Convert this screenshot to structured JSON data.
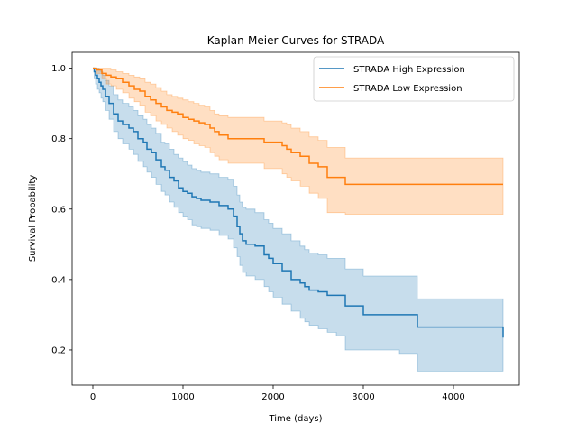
{
  "chart_data": {
    "type": "line",
    "title": "Kaplan-Meier Curves for STRADA",
    "xlabel": "Time (days)",
    "ylabel": "Survival Probability",
    "xlim": [
      -230,
      4730
    ],
    "ylim": [
      0.1,
      1.045
    ],
    "xticks": [
      0,
      1000,
      2000,
      3000,
      4000
    ],
    "yticks": [
      0.2,
      0.4,
      0.6,
      0.8,
      1.0
    ],
    "xtick_labels": [
      "0",
      "1000",
      "2000",
      "3000",
      "4000"
    ],
    "ytick_labels": [
      "0.2",
      "0.4",
      "0.6",
      "0.8",
      "1.0"
    ],
    "grid": false,
    "legend_position": "top-right",
    "series": [
      {
        "name": "STRADA High Expression",
        "color": "#1f77b4",
        "x": [
          0,
          15,
          30,
          50,
          70,
          90,
          110,
          140,
          180,
          230,
          280,
          330,
          400,
          450,
          500,
          560,
          600,
          650,
          700,
          760,
          800,
          850,
          900,
          950,
          1000,
          1050,
          1100,
          1150,
          1200,
          1300,
          1400,
          1500,
          1560,
          1600,
          1630,
          1660,
          1700,
          1800,
          1900,
          1950,
          2000,
          2100,
          2200,
          2300,
          2350,
          2400,
          2500,
          2600,
          2700,
          2800,
          3000,
          3200,
          3400,
          3550,
          3600,
          4550
        ],
        "y": [
          1.0,
          0.99,
          0.98,
          0.97,
          0.96,
          0.95,
          0.94,
          0.92,
          0.9,
          0.87,
          0.85,
          0.84,
          0.83,
          0.82,
          0.8,
          0.79,
          0.77,
          0.76,
          0.74,
          0.72,
          0.71,
          0.69,
          0.68,
          0.66,
          0.65,
          0.645,
          0.635,
          0.63,
          0.625,
          0.62,
          0.61,
          0.6,
          0.58,
          0.55,
          0.53,
          0.51,
          0.5,
          0.495,
          0.47,
          0.46,
          0.445,
          0.425,
          0.4,
          0.39,
          0.38,
          0.37,
          0.365,
          0.355,
          0.355,
          0.325,
          0.3,
          0.3,
          0.3,
          0.3,
          0.265,
          0.235
        ],
        "ci_upper": [
          1.0,
          1.0,
          1.0,
          1.0,
          0.995,
          0.99,
          0.98,
          0.965,
          0.95,
          0.925,
          0.91,
          0.9,
          0.89,
          0.88,
          0.865,
          0.855,
          0.84,
          0.83,
          0.815,
          0.79,
          0.785,
          0.77,
          0.755,
          0.745,
          0.735,
          0.725,
          0.715,
          0.71,
          0.705,
          0.7,
          0.69,
          0.685,
          0.665,
          0.64,
          0.62,
          0.605,
          0.6,
          0.59,
          0.57,
          0.56,
          0.545,
          0.53,
          0.51,
          0.495,
          0.485,
          0.475,
          0.47,
          0.46,
          0.46,
          0.43,
          0.41,
          0.41,
          0.41,
          0.41,
          0.345,
          0.345
        ],
        "ci_lower": [
          1.0,
          0.97,
          0.955,
          0.94,
          0.93,
          0.915,
          0.905,
          0.88,
          0.855,
          0.82,
          0.8,
          0.785,
          0.77,
          0.755,
          0.735,
          0.72,
          0.705,
          0.69,
          0.67,
          0.65,
          0.64,
          0.62,
          0.605,
          0.59,
          0.58,
          0.57,
          0.555,
          0.55,
          0.545,
          0.54,
          0.525,
          0.515,
          0.49,
          0.465,
          0.44,
          0.42,
          0.41,
          0.4,
          0.38,
          0.365,
          0.35,
          0.33,
          0.31,
          0.29,
          0.28,
          0.27,
          0.26,
          0.25,
          0.24,
          0.2,
          0.2,
          0.2,
          0.19,
          0.19,
          0.14,
          0.14
        ]
      },
      {
        "name": "STRADA Low Expression",
        "color": "#ff7f0e",
        "x": [
          0,
          40,
          100,
          150,
          200,
          260,
          330,
          400,
          460,
          520,
          580,
          640,
          700,
          760,
          820,
          880,
          940,
          1000,
          1060,
          1120,
          1180,
          1240,
          1300,
          1350,
          1400,
          1500,
          1600,
          1700,
          1800,
          1900,
          2000,
          2100,
          2150,
          2200,
          2300,
          2400,
          2500,
          2550,
          2600,
          2750,
          2800,
          3000,
          3400,
          4550
        ],
        "y": [
          1.0,
          0.995,
          0.985,
          0.98,
          0.975,
          0.97,
          0.96,
          0.95,
          0.94,
          0.935,
          0.92,
          0.91,
          0.9,
          0.89,
          0.88,
          0.875,
          0.87,
          0.86,
          0.855,
          0.85,
          0.845,
          0.84,
          0.83,
          0.82,
          0.81,
          0.8,
          0.8,
          0.8,
          0.8,
          0.79,
          0.79,
          0.78,
          0.77,
          0.76,
          0.75,
          0.73,
          0.72,
          0.72,
          0.69,
          0.69,
          0.67,
          0.67,
          0.67,
          0.67
        ],
        "ci_upper": [
          1.0,
          1.0,
          1.0,
          1.0,
          0.995,
          0.99,
          0.985,
          0.98,
          0.975,
          0.97,
          0.96,
          0.955,
          0.945,
          0.935,
          0.925,
          0.92,
          0.915,
          0.91,
          0.905,
          0.9,
          0.895,
          0.89,
          0.88,
          0.87,
          0.865,
          0.86,
          0.86,
          0.86,
          0.86,
          0.85,
          0.85,
          0.845,
          0.84,
          0.83,
          0.82,
          0.805,
          0.795,
          0.795,
          0.775,
          0.775,
          0.745,
          0.745,
          0.745,
          0.745
        ],
        "ci_lower": [
          1.0,
          0.985,
          0.97,
          0.955,
          0.95,
          0.94,
          0.93,
          0.915,
          0.905,
          0.895,
          0.875,
          0.865,
          0.85,
          0.84,
          0.83,
          0.82,
          0.81,
          0.8,
          0.795,
          0.785,
          0.78,
          0.775,
          0.76,
          0.75,
          0.74,
          0.73,
          0.73,
          0.73,
          0.73,
          0.715,
          0.715,
          0.7,
          0.69,
          0.68,
          0.665,
          0.645,
          0.63,
          0.63,
          0.59,
          0.59,
          0.585,
          0.585,
          0.585,
          0.585
        ]
      }
    ]
  }
}
